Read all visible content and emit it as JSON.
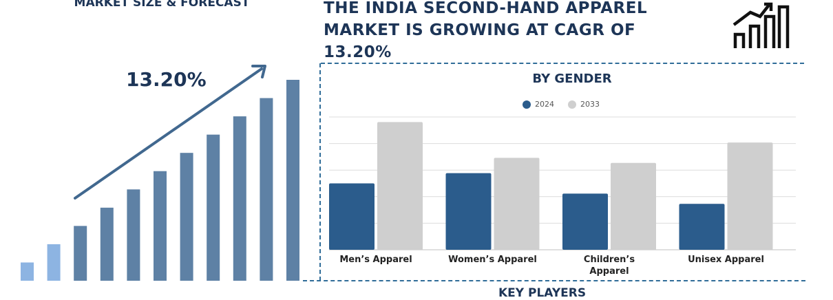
{
  "left_panel": {
    "title": "MARKET SIZE & FORECAST",
    "cagr_label": "13.20%",
    "bars": [
      {
        "value": 1.0,
        "color": "#8db4e2"
      },
      {
        "value": 2.0,
        "color": "#8db4e2"
      },
      {
        "value": 3.0,
        "color": "#5e81a5"
      },
      {
        "value": 4.0,
        "color": "#5e81a5"
      },
      {
        "value": 5.0,
        "color": "#5e81a5"
      },
      {
        "value": 6.0,
        "color": "#5e81a5"
      },
      {
        "value": 7.0,
        "color": "#5e81a5"
      },
      {
        "value": 8.0,
        "color": "#5e81a5"
      },
      {
        "value": 9.0,
        "color": "#5e81a5"
      },
      {
        "value": 10.0,
        "color": "#5e81a5"
      },
      {
        "value": 11.0,
        "color": "#5e81a5"
      }
    ],
    "arrow_color": "#41688f"
  },
  "headline": {
    "lines": [
      "THE INDIA SECOND-HAND APPAREL",
      "MARKET IS GROWING AT CAGR OF",
      "13.20%"
    ]
  },
  "icon": {
    "name": "growth-chart-icon"
  },
  "chart_data": {
    "type": "bar",
    "title": "BY GENDER",
    "categories": [
      [
        "Men’s Apparel"
      ],
      [
        "Women’s Apparel"
      ],
      [
        "Children’s",
        "Apparel"
      ],
      [
        "Unisex Apparel"
      ]
    ],
    "series": [
      {
        "name": "2024",
        "color": "#2b5c8c",
        "values": [
          2.6,
          3.0,
          2.2,
          1.8
        ]
      },
      {
        "name": "2033",
        "color": "#cfcfcf",
        "values": [
          5.0,
          3.6,
          3.4,
          4.2
        ]
      }
    ],
    "ylim": [
      0,
      5.2
    ],
    "gridlines": 6,
    "legend_position": "top-center"
  },
  "bottom": {
    "title": "KEY PLAYERS"
  }
}
